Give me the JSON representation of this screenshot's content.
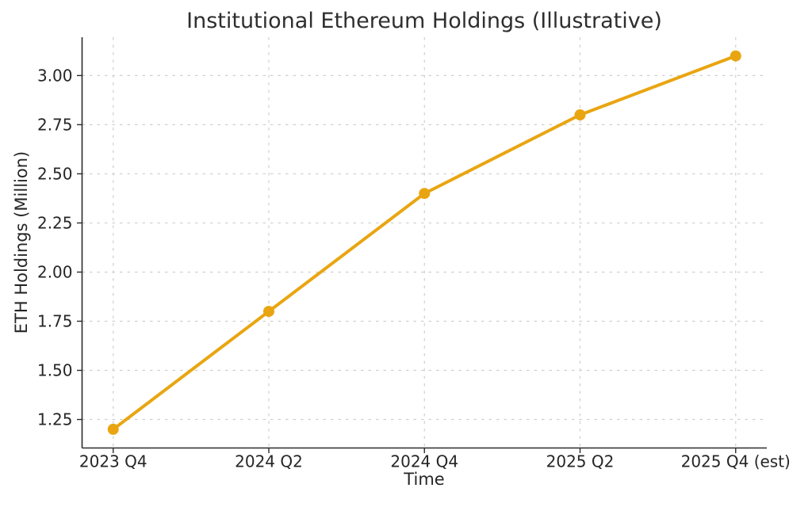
{
  "chart_data": {
    "type": "line",
    "title": "Institutional Ethereum Holdings (Illustrative)",
    "xlabel": "Time",
    "ylabel": "ETH Holdings (Million)",
    "categories": [
      "2023 Q4",
      "2024 Q2",
      "2024 Q4",
      "2025 Q2",
      "2025 Q4 (est)"
    ],
    "values": [
      1.2,
      1.8,
      2.4,
      2.8,
      3.1
    ],
    "yticks": [
      1.25,
      1.5,
      1.75,
      2.0,
      2.25,
      2.5,
      2.75,
      3.0
    ],
    "ytick_labels": [
      "1.25",
      "1.50",
      "1.75",
      "2.00",
      "2.25",
      "2.50",
      "2.75",
      "3.00"
    ],
    "xlim": [
      -0.2,
      4.2
    ],
    "ylim": [
      1.105,
      3.195
    ],
    "grid": "dashed",
    "legend": "none",
    "colors": {
      "line": "#E9A511",
      "marker": "#E9A511",
      "grid": "#cfcfcf",
      "spine": "#2b2b2b",
      "tick": "#2b2b2b",
      "text": "#262626",
      "background": "#ffffff"
    }
  }
}
